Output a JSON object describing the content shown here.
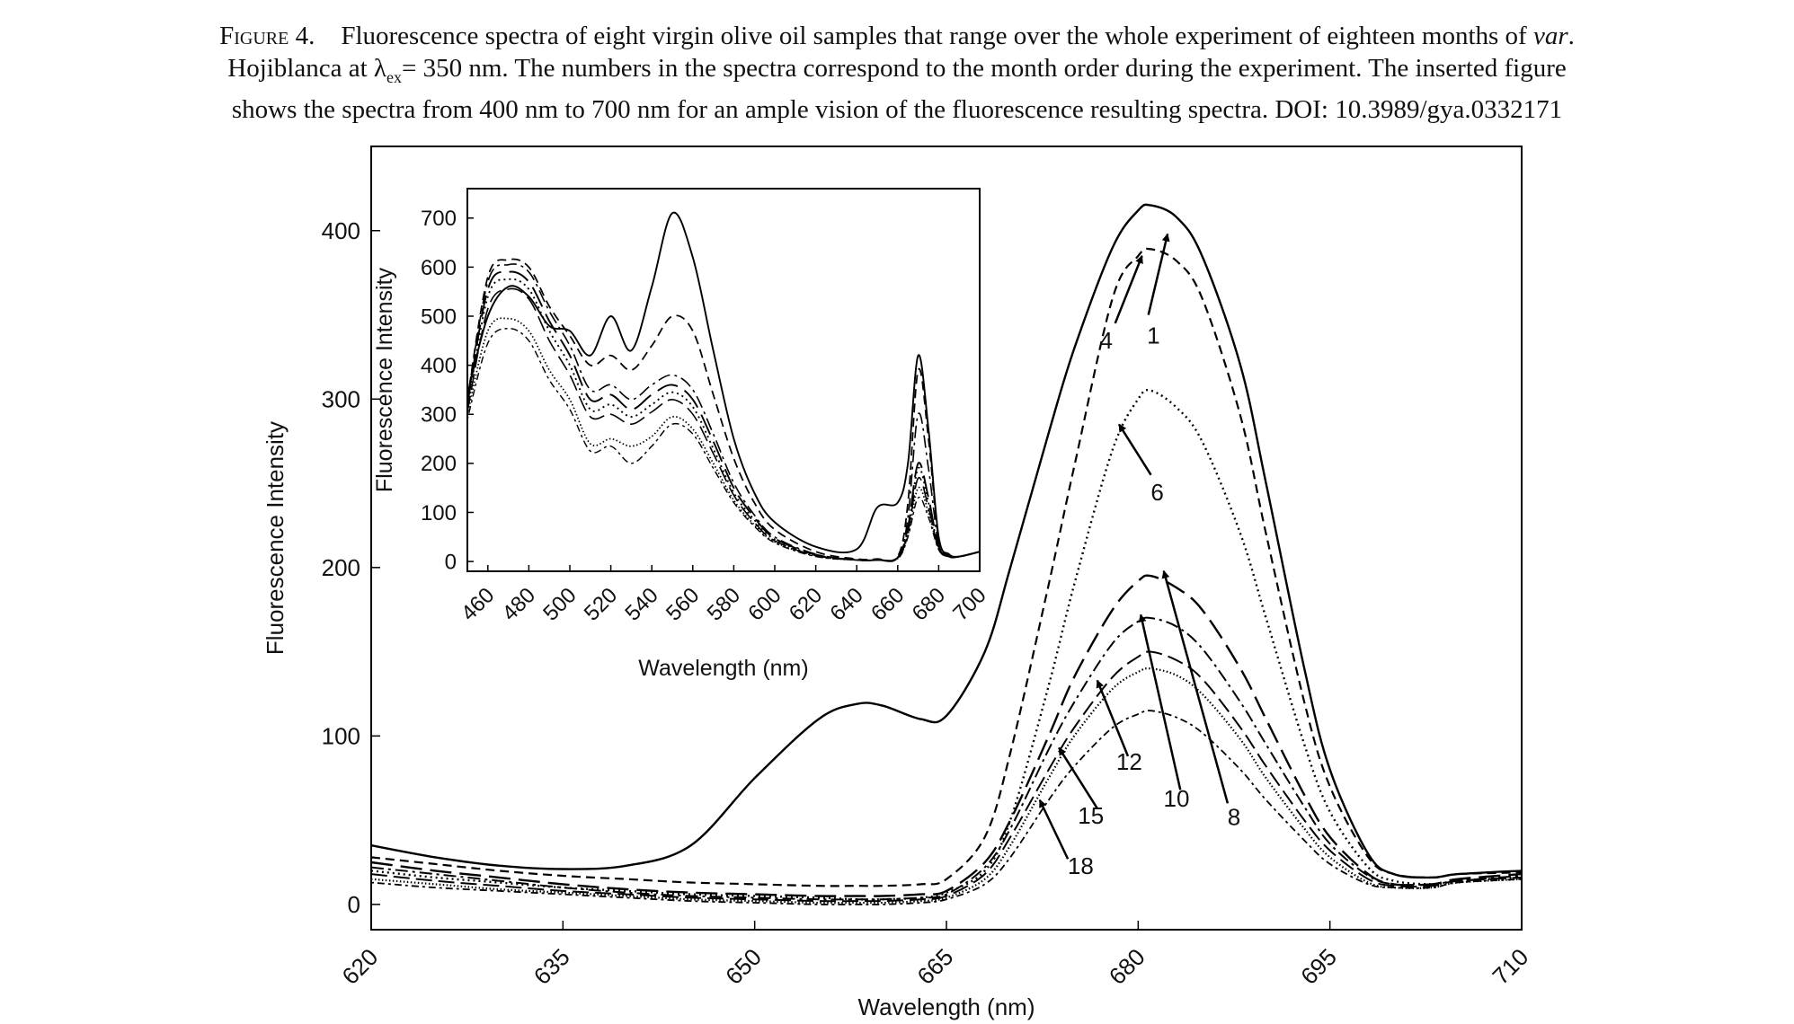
{
  "caption": {
    "label": "Figure 4.",
    "line1": "Fluorescence spectra of eight virgin olive oil samples that range over the whole experiment of eighteen months of",
    "line1_italic": "var",
    "line1_end": ".",
    "line2a": "Hojiblanca at λ",
    "line2_sub": "ex",
    "line2b": "= 350 nm. The numbers in the spectra correspond to the month order during the experiment. The inserted figure",
    "line3": "shows the spectra from 400 nm to 700 nm for an ample vision of the fluorescence resulting spectra. DOI: 10.3989/gya.0332171"
  },
  "chart_data": [
    {
      "type": "line",
      "xlabel": "Wavelength (nm)",
      "ylabel": "Fluorescence Intensity",
      "xlim": [
        620,
        710
      ],
      "ylim": [
        -15,
        450
      ],
      "xticks": [
        620,
        635,
        650,
        665,
        680,
        695,
        710
      ],
      "yticks": [
        0,
        100,
        200,
        300,
        400
      ],
      "grid": false,
      "x": [
        620,
        625,
        630,
        635,
        640,
        645,
        650,
        655,
        658,
        660,
        663,
        665,
        668,
        670,
        673,
        675,
        678,
        680,
        681,
        683,
        685,
        688,
        690,
        693,
        695,
        698,
        700,
        703,
        705,
        710
      ],
      "series": [
        {
          "name": "1",
          "style": "solid",
          "values": [
            35,
            28,
            23,
            21,
            23,
            35,
            75,
            110,
            119,
            118,
            110,
            112,
            150,
            200,
            280,
            330,
            390,
            412,
            415,
            408,
            385,
            320,
            250,
            140,
            80,
            30,
            18,
            16,
            18,
            20
          ]
        },
        {
          "name": "4",
          "style": "dash",
          "values": [
            28,
            24,
            20,
            17,
            15,
            13,
            12,
            11,
            11,
            11,
            12,
            15,
            40,
            90,
            190,
            260,
            360,
            385,
            389,
            382,
            360,
            290,
            220,
            120,
            70,
            28,
            18,
            16,
            18,
            19
          ]
        },
        {
          "name": "6",
          "style": "dot",
          "values": [
            20,
            16,
            13,
            10,
            8,
            6,
            5,
            4,
            3,
            3,
            4,
            7,
            20,
            50,
            130,
            190,
            270,
            300,
            305,
            295,
            275,
            220,
            170,
            95,
            55,
            22,
            14,
            12,
            14,
            16
          ]
        },
        {
          "name": "8",
          "style": "longdash",
          "values": [
            25,
            20,
            16,
            12,
            9,
            7,
            6,
            5,
            5,
            5,
            6,
            8,
            25,
            50,
            100,
            135,
            175,
            192,
            195,
            188,
            175,
            140,
            110,
            65,
            40,
            18,
            12,
            12,
            15,
            18
          ]
        },
        {
          "name": "10",
          "style": "dashdot",
          "values": [
            22,
            18,
            14,
            10,
            7,
            5,
            4,
            3,
            3,
            3,
            4,
            6,
            22,
            45,
            92,
            120,
            155,
            168,
            170,
            165,
            152,
            120,
            95,
            58,
            36,
            17,
            12,
            12,
            14,
            17
          ]
        },
        {
          "name": "12",
          "style": "longdash-thin",
          "values": [
            18,
            14,
            11,
            8,
            6,
            4,
            3,
            2,
            2,
            2,
            3,
            5,
            18,
            40,
            80,
            105,
            135,
            147,
            150,
            145,
            134,
            105,
            82,
            50,
            32,
            15,
            11,
            11,
            14,
            16
          ]
        },
        {
          "name": "15",
          "style": "fine-dot",
          "values": [
            15,
            12,
            9,
            7,
            5,
            3,
            2,
            1,
            1,
            1,
            2,
            4,
            15,
            35,
            75,
            100,
            128,
            138,
            140,
            136,
            125,
            98,
            75,
            45,
            28,
            13,
            10,
            10,
            13,
            15
          ]
        },
        {
          "name": "18",
          "style": "dotdash",
          "values": [
            13,
            10,
            8,
            6,
            4,
            2,
            1,
            0,
            0,
            0,
            1,
            3,
            12,
            28,
            62,
            82,
            105,
            113,
            115,
            111,
            102,
            80,
            62,
            38,
            24,
            12,
            10,
            10,
            13,
            15
          ]
        }
      ],
      "annotations": [
        {
          "text": "4",
          "tip": [
            680.3,
            385
          ],
          "tail": [
            678.2,
            345
          ]
        },
        {
          "text": "1",
          "tip": [
            682.3,
            398
          ],
          "tail": [
            680.8,
            350
          ]
        },
        {
          "text": "6",
          "tip": [
            678.5,
            285
          ],
          "tail": [
            681.0,
            255
          ]
        },
        {
          "text": "8",
          "tip": [
            682.0,
            198
          ],
          "tail": [
            687.0,
            60
          ]
        },
        {
          "text": "10",
          "tip": [
            680.2,
            172
          ],
          "tail": [
            683.3,
            68
          ]
        },
        {
          "text": "12",
          "tip": [
            676.8,
            133
          ],
          "tail": [
            679.2,
            88
          ]
        },
        {
          "text": "15",
          "tip": [
            673.8,
            93
          ],
          "tail": [
            676.8,
            57
          ]
        },
        {
          "text": "18",
          "tip": [
            672.3,
            62
          ],
          "tail": [
            674.5,
            27
          ]
        }
      ],
      "label_positions": {
        "4": [
          677.5,
          330
        ],
        "1": [
          681.2,
          333
        ],
        "6": [
          681.5,
          240
        ],
        "8": [
          687.5,
          47
        ],
        "10": [
          683.0,
          58
        ],
        "12": [
          679.3,
          80
        ],
        "15": [
          676.3,
          48
        ],
        "18": [
          675.5,
          18
        ]
      },
      "inset": {
        "xlabel": "Wavelength (nm)",
        "ylabel": "Fluorescence Intensity",
        "xlim": [
          450,
          700
        ],
        "ylim": [
          -20,
          760
        ],
        "xticks": [
          460,
          480,
          500,
          520,
          540,
          560,
          580,
          600,
          620,
          640,
          660,
          680,
          700
        ],
        "yticks": [
          0,
          100,
          200,
          300,
          400,
          500,
          600,
          700
        ],
        "x": [
          450,
          460,
          470,
          480,
          490,
          500,
          510,
          520,
          530,
          540,
          550,
          560,
          570,
          580,
          590,
          600,
          620,
          640,
          650,
          660,
          665,
          670,
          675,
          680,
          685,
          690,
          700
        ],
        "series": [
          {
            "name": "1",
            "style": "solid",
            "values": [
              340,
              500,
              560,
              540,
              480,
              470,
              420,
              500,
              430,
              560,
              710,
              620,
              430,
              250,
              140,
              80,
              30,
              25,
              110,
              120,
              200,
              420,
              270,
              50,
              15,
              10,
              20
            ]
          },
          {
            "name": "4",
            "style": "dash",
            "values": [
              330,
              580,
              615,
              600,
              520,
              460,
              400,
              420,
              390,
              440,
              500,
              470,
              340,
              210,
              120,
              65,
              20,
              5,
              5,
              10,
              120,
              390,
              250,
              45,
              12,
              10,
              20
            ]
          },
          {
            "name": "6",
            "style": "dashdot",
            "values": [
              330,
              570,
              605,
              590,
              510,
              440,
              350,
              360,
              330,
              360,
              380,
              350,
              260,
              160,
              95,
              50,
              15,
              3,
              3,
              8,
              90,
              300,
              190,
              35,
              10,
              10,
              20
            ]
          },
          {
            "name": "8",
            "style": "longdash",
            "values": [
              320,
              555,
              590,
              570,
              490,
              420,
              330,
              340,
              310,
              340,
              360,
              330,
              245,
              150,
              90,
              47,
              14,
              3,
              3,
              8,
              70,
              200,
              130,
              30,
              10,
              10,
              20
            ]
          },
          {
            "name": "10",
            "style": "dot",
            "values": [
              310,
              540,
              575,
              555,
              470,
              400,
              310,
              320,
              295,
              320,
              345,
              315,
              230,
              140,
              85,
              45,
              13,
              3,
              3,
              7,
              65,
              190,
              120,
              28,
              10,
              10,
              20
            ]
          },
          {
            "name": "12",
            "style": "longdash-thin",
            "values": [
              305,
              515,
              555,
              535,
              450,
              380,
              295,
              300,
              280,
              305,
              330,
              300,
              220,
              135,
              80,
              42,
              12,
              3,
              3,
              7,
              60,
              170,
              110,
              26,
              10,
              10,
              20
            ]
          },
          {
            "name": "15",
            "style": "fine-dot",
            "values": [
              300,
              470,
              495,
              470,
              390,
              330,
              240,
              250,
              235,
              255,
              295,
              270,
              200,
              125,
              75,
              40,
              11,
              3,
              3,
              6,
              55,
              150,
              100,
              25,
              10,
              10,
              20
            ]
          },
          {
            "name": "18",
            "style": "dotdash",
            "values": [
              290,
              445,
              475,
              450,
              370,
              310,
              225,
              235,
              200,
              235,
              280,
              260,
              190,
              120,
              72,
              38,
              10,
              3,
              3,
              6,
              50,
              130,
              90,
              24,
              10,
              10,
              20
            ]
          }
        ]
      }
    }
  ]
}
